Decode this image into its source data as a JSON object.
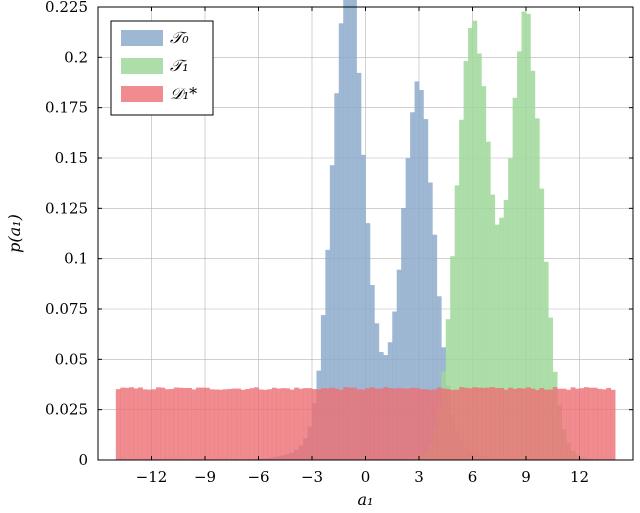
{
  "chart_data": {
    "type": "histogram",
    "xlabel": "a₁",
    "ylabel": "p(a₁)",
    "xlim": [
      -15,
      15
    ],
    "ylim": [
      0,
      0.225
    ],
    "x_ticks": [
      -12,
      -9,
      -6,
      -3,
      0,
      3,
      6,
      9,
      12
    ],
    "x_tick_labels": [
      "−12",
      "−9",
      "−6",
      "−3",
      "0",
      "3",
      "6",
      "9",
      "12"
    ],
    "y_ticks": [
      0,
      0.025,
      0.05,
      0.075,
      0.1,
      0.125,
      0.15,
      0.175,
      0.2,
      0.225
    ],
    "y_tick_labels": [
      "0",
      "0.025",
      "0.05",
      "0.075",
      "0.1",
      "0.125",
      "0.15",
      "0.175",
      "0.2",
      "0.225"
    ],
    "grid": true,
    "legend_position": "top-left",
    "bin_width": 0.25,
    "series": [
      {
        "name": "𝒯₀",
        "color": "#8daacb",
        "opacity": 0.85,
        "components": [
          {
            "mean": -1.0,
            "std": 0.85,
            "weight": 0.47
          },
          {
            "mean": 3.0,
            "std": 0.85,
            "weight": 0.35
          },
          {
            "mean": 1.0,
            "std": 2.5,
            "weight": 0.18
          }
        ]
      },
      {
        "name": "𝒯₁",
        "color": "#9fd89a",
        "opacity": 0.85,
        "components": [
          {
            "mean": 6.0,
            "std": 0.9,
            "weight": 0.47
          },
          {
            "mean": 9.0,
            "std": 0.9,
            "weight": 0.47
          },
          {
            "mean": 7.5,
            "std": 2.0,
            "weight": 0.06
          }
        ]
      },
      {
        "name": "𝒟₁*",
        "color": "#ec6f73",
        "opacity": 0.8,
        "uniform_range": [
          -14,
          14
        ],
        "uniform_density": 0.0355
      }
    ]
  }
}
